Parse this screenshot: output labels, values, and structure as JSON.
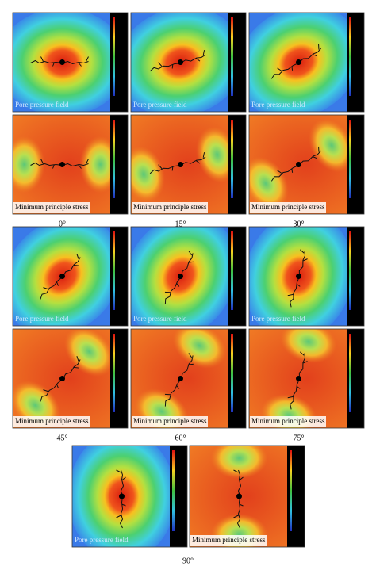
{
  "groups": [
    {
      "angle": {
        "value": 0,
        "label": "0°"
      },
      "panels": [
        {
          "label": "Pore pressure field"
        },
        {
          "label": "Minimum principle stress"
        }
      ]
    },
    {
      "angle": {
        "value": 15,
        "label": "15°"
      },
      "panels": [
        {
          "label": "Pore pressure field"
        },
        {
          "label": "Minimum principle stress"
        }
      ]
    },
    {
      "angle": {
        "value": 30,
        "label": "30°"
      },
      "panels": [
        {
          "label": "Pore pressure field"
        },
        {
          "label": "Minimum principle stress"
        }
      ]
    },
    {
      "angle": {
        "value": 45,
        "label": "45°"
      },
      "panels": [
        {
          "label": "Pore pressure field"
        },
        {
          "label": "Minimum principle stress"
        }
      ]
    },
    {
      "angle": {
        "value": 60,
        "label": "60°"
      },
      "panels": [
        {
          "label": "Pore pressure field"
        },
        {
          "label": "Minimum principle stress"
        }
      ]
    },
    {
      "angle": {
        "value": 75,
        "label": "75°"
      },
      "panels": [
        {
          "label": "Pore pressure field"
        },
        {
          "label": "Minimum principle stress"
        }
      ]
    },
    {
      "angle": {
        "value": 90,
        "label": "90°"
      },
      "panels": [
        {
          "label": "Pore pressure field"
        },
        {
          "label": "Minimum principle stress"
        }
      ]
    }
  ]
}
